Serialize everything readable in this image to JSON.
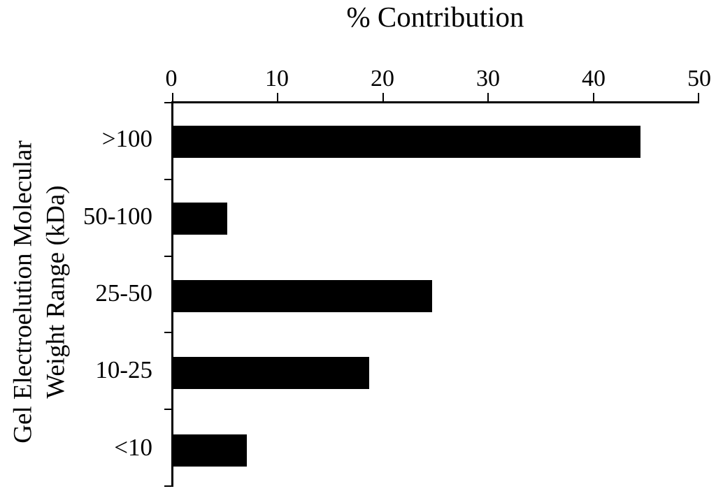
{
  "chart_data": {
    "type": "bar",
    "orientation": "horizontal",
    "title": "% Contribution",
    "categories": [
      ">100",
      "50-100",
      "25-50",
      "10-25",
      "<10"
    ],
    "values": [
      44.4,
      5.1,
      24.6,
      18.6,
      7.0
    ],
    "x_ticks": [
      0,
      10,
      20,
      30,
      40,
      50
    ],
    "xlim": [
      0,
      50
    ],
    "xlabel": "% Contribution",
    "ylabel_lines": [
      "Gel Electroelution Molecular",
      "Weight Range (kDa)"
    ],
    "bar_color": "#000000",
    "axis_color": "#000000",
    "background_color": "#ffffff",
    "grid": "off",
    "legend": "none"
  }
}
